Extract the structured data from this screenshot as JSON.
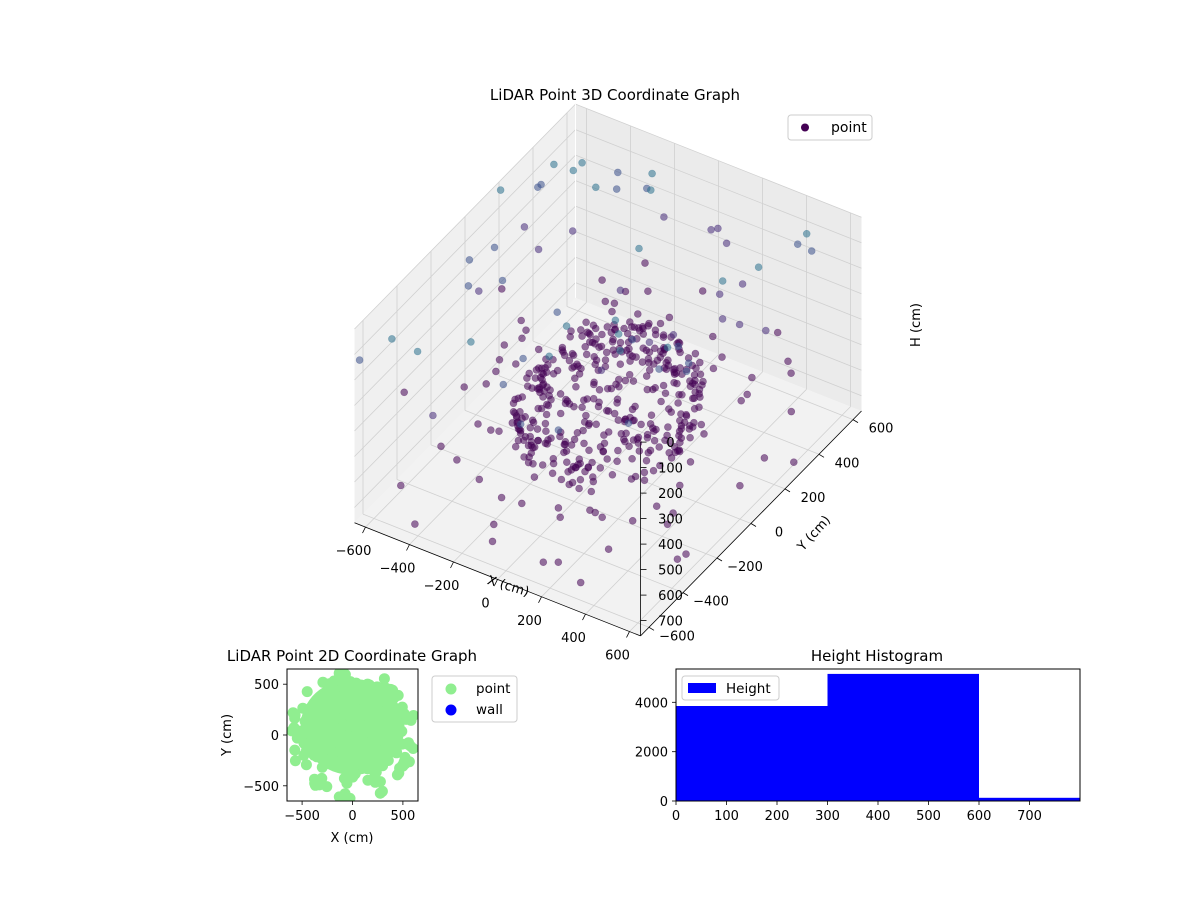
{
  "chart_data": [
    {
      "type": "scatter",
      "projection": "3d",
      "title": "LiDAR Point 3D Coordinate Graph",
      "xlabel": "X (cm)",
      "ylabel": "Y (cm)",
      "zlabel": "H (cm)",
      "xticks": [
        -600,
        -400,
        -200,
        0,
        200,
        400,
        600
      ],
      "yticks": [
        -600,
        -400,
        -200,
        0,
        200,
        400,
        600
      ],
      "zticks": [
        0,
        100,
        200,
        300,
        400,
        500,
        600,
        700
      ],
      "xlim": [
        -650,
        650
      ],
      "ylim": [
        -650,
        650
      ],
      "zlim": [
        760,
        0
      ],
      "zaxis_inverted": true,
      "grid": true,
      "legend": {
        "placement": "top-right",
        "entries": [
          "point"
        ]
      },
      "series": [
        {
          "name": "point",
          "colormap": "viridis",
          "color": "#440154",
          "alpha": 0.5,
          "components": [
            {
              "kind": "ring",
              "radius": 330,
              "h_from": 430,
              "h_to": 600
            },
            {
              "kind": "disk",
              "radius": 330,
              "h_from": 420,
              "h_to": 480
            },
            {
              "kind": "scatter",
              "x_range": [
                -650,
                650
              ],
              "y_range": [
                -650,
                650
              ],
              "h_range": [
                0,
                760
              ]
            }
          ]
        }
      ]
    },
    {
      "type": "scatter",
      "title": "LiDAR Point 2D Coordinate Graph",
      "xlabel": "X (cm)",
      "ylabel": "Y (cm)",
      "xticks": [
        -500,
        0,
        500
      ],
      "yticks": [
        -500,
        0,
        500
      ],
      "xlim": [
        -650,
        650
      ],
      "ylim": [
        -650,
        650
      ],
      "grid": false,
      "legend": {
        "placement": "outside-right"
      },
      "series": [
        {
          "name": "point",
          "color": "#90ee90"
        },
        {
          "name": "wall",
          "color": "#0000ff"
        }
      ]
    },
    {
      "type": "bar",
      "subtype": "histogram",
      "title": "Height Histogram",
      "xticks": [
        0,
        100,
        200,
        300,
        400,
        500,
        600,
        700
      ],
      "yticks": [
        0,
        2000,
        4000
      ],
      "xlim": [
        0,
        800
      ],
      "ylim": [
        0,
        5350
      ],
      "grid": false,
      "legend": {
        "placement": "top-left"
      },
      "series": [
        {
          "name": "Height",
          "color": "#0000ff",
          "bins": [
            [
              0,
              300
            ],
            [
              300,
              600
            ],
            [
              600,
              800
            ]
          ],
          "values": [
            3850,
            5150,
            130
          ]
        }
      ]
    }
  ]
}
